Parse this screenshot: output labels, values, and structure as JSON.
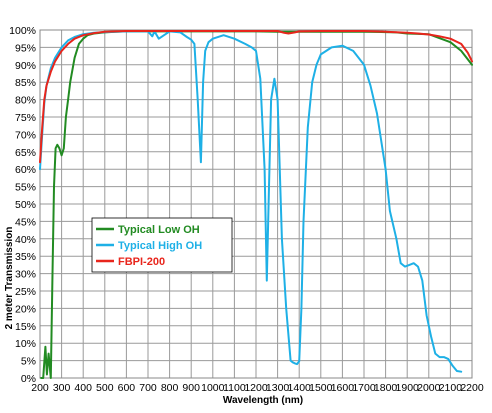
{
  "chart_data": {
    "type": "line",
    "xlabel": "Wavelength (nm)",
    "ylabel": "2 meter Transmission",
    "xlim": [
      200,
      2200
    ],
    "ylim": [
      0,
      100
    ],
    "grid": true,
    "legend_position": "lower-left",
    "x_ticks": [
      200,
      300,
      400,
      500,
      600,
      700,
      800,
      900,
      1000,
      1100,
      1200,
      1300,
      1400,
      1500,
      1600,
      1700,
      1800,
      1900,
      2000,
      2100,
      2200
    ],
    "x_tick_labels": [
      "200",
      "300",
      "400",
      "500",
      "600",
      "700",
      "800",
      "900",
      "1000",
      "1100",
      "1200",
      "1300",
      "1400",
      "1500",
      "1600",
      "1700",
      "1800",
      "1900",
      "2000",
      "2100",
      "2200"
    ],
    "y_ticks": [
      0,
      5,
      10,
      15,
      20,
      25,
      30,
      35,
      40,
      45,
      50,
      55,
      60,
      65,
      70,
      75,
      80,
      85,
      90,
      95,
      100
    ],
    "y_tick_labels": [
      "0%",
      "5%",
      "10%",
      "15%",
      "20%",
      "25%",
      "30%",
      "35%",
      "40%",
      "45%",
      "50%",
      "55%",
      "60%",
      "65%",
      "70%",
      "75%",
      "80%",
      "85%",
      "90%",
      "95%",
      "100%"
    ],
    "series": [
      {
        "name": "Typical Low OH",
        "color": "#228B22",
        "x": [
          205,
          215,
          225,
          232,
          240,
          250,
          258,
          265,
          272,
          280,
          290,
          300,
          310,
          320,
          330,
          340,
          360,
          380,
          400,
          420,
          450,
          500,
          550,
          600,
          700,
          800,
          900,
          1000,
          1100,
          1200,
          1300,
          1400,
          1500,
          1600,
          1700,
          1800,
          1850,
          1900,
          2000,
          2100,
          2150,
          2200
        ],
        "y": [
          0,
          0,
          9,
          1,
          7,
          0,
          30,
          55,
          66,
          67,
          66,
          64,
          66,
          75,
          80,
          85,
          92,
          96,
          97.5,
          98.5,
          99,
          99.3,
          99.5,
          99.6,
          99.6,
          99.6,
          99.6,
          99.6,
          99.6,
          99.6,
          99.5,
          99.5,
          99.5,
          99.5,
          99.5,
          99.4,
          99.3,
          99,
          98.8,
          96.5,
          94,
          90
        ]
      },
      {
        "name": "Typical High OH",
        "color": "#1EB0E6",
        "x": [
          200,
          210,
          220,
          230,
          250,
          270,
          300,
          330,
          360,
          400,
          450,
          500,
          600,
          700,
          720,
          730,
          750,
          800,
          850,
          880,
          900,
          915,
          930,
          945,
          955,
          965,
          980,
          1000,
          1050,
          1100,
          1150,
          1180,
          1200,
          1220,
          1240,
          1250,
          1260,
          1270,
          1285,
          1300,
          1320,
          1340,
          1360,
          1370,
          1380,
          1390,
          1400,
          1410,
          1420,
          1440,
          1460,
          1480,
          1500,
          1550,
          1600,
          1650,
          1700,
          1730,
          1760,
          1800,
          1820,
          1850,
          1870,
          1890,
          1910,
          1930,
          1950,
          1970,
          1990,
          2010,
          2030,
          2050,
          2070,
          2090,
          2110,
          2130,
          2150
        ],
        "y": [
          60,
          70,
          79,
          84,
          89,
          92,
          95,
          97,
          98,
          98.8,
          99.2,
          99.4,
          99.6,
          99.6,
          98.2,
          99.6,
          97.5,
          99.6,
          99.3,
          98,
          97.2,
          96,
          80,
          62,
          85,
          94,
          96.5,
          97.5,
          98.5,
          97.5,
          96,
          95,
          94,
          86,
          60,
          28,
          55,
          80,
          86,
          80,
          40,
          20,
          5,
          4.5,
          4.2,
          4,
          4.8,
          20,
          45,
          72,
          85,
          90,
          93,
          95,
          95.5,
          94,
          90,
          84,
          76,
          60,
          48,
          40,
          33,
          32,
          32.5,
          33,
          32,
          28,
          18,
          12,
          7,
          6,
          6,
          5.5,
          3.5,
          2,
          1.8
        ]
      },
      {
        "name": "FBPI-200",
        "color": "#E8251C",
        "x": [
          200,
          210,
          220,
          230,
          250,
          270,
          300,
          330,
          360,
          400,
          450,
          500,
          600,
          700,
          800,
          900,
          1000,
          1100,
          1200,
          1300,
          1330,
          1350,
          1380,
          1400,
          1500,
          1600,
          1700,
          1800,
          1900,
          1950,
          2000,
          2050,
          2100,
          2150,
          2180,
          2200
        ],
        "y": [
          62,
          72,
          80,
          84,
          88,
          91,
          94,
          96,
          97.5,
          98.5,
          99.1,
          99.5,
          99.7,
          99.7,
          99.7,
          99.7,
          99.7,
          99.7,
          99.7,
          99.7,
          99.2,
          99.0,
          99.3,
          99.6,
          99.7,
          99.7,
          99.7,
          99.5,
          99.2,
          99.0,
          98.7,
          98.2,
          97.5,
          96.0,
          93.5,
          91
        ]
      }
    ]
  }
}
